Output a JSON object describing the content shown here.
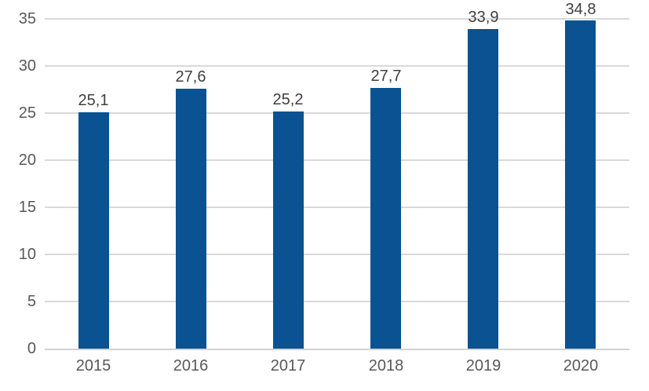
{
  "chart_data": {
    "type": "bar",
    "title": "",
    "xlabel": "",
    "ylabel": "",
    "categories": [
      "2015",
      "2016",
      "2017",
      "2018",
      "2019",
      "2020"
    ],
    "values": [
      25.1,
      27.6,
      25.2,
      27.7,
      33.9,
      34.8
    ],
    "value_labels": [
      "25,1",
      "27,6",
      "25,2",
      "27,7",
      "33,9",
      "34,8"
    ],
    "ylim": [
      0,
      35
    ],
    "y_ticks": [
      0,
      5,
      10,
      15,
      20,
      25,
      30,
      35
    ],
    "y_tick_labels": [
      "0",
      "5",
      "10",
      "15",
      "20",
      "25",
      "30",
      "35"
    ],
    "grid": true,
    "legend": "none",
    "colors": {
      "bar": "#0A5291",
      "gridline": "#D9D9D9",
      "axis_line": "#D2D2D2",
      "tick_label": "#595959",
      "value_label": "#404040",
      "background": "#FFFFFF"
    }
  }
}
